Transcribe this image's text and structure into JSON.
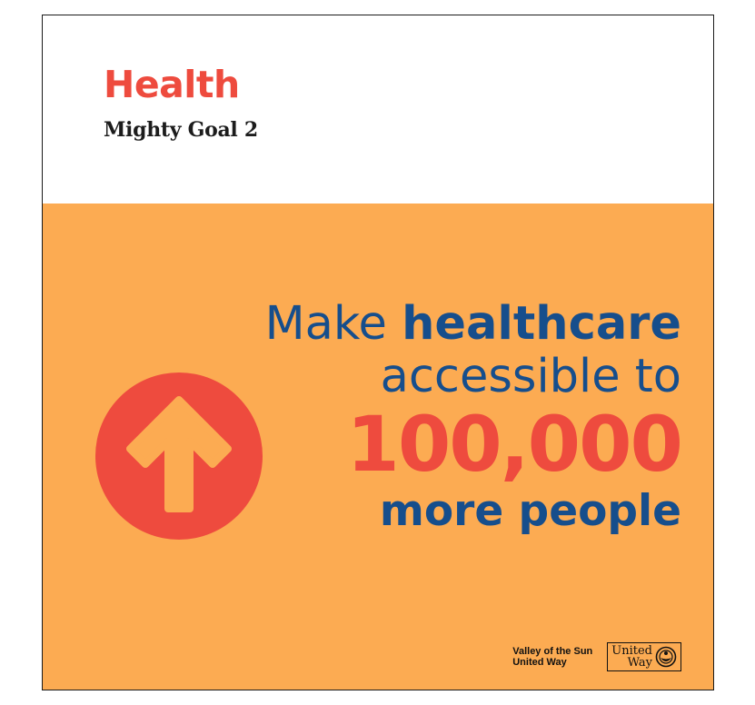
{
  "colors": {
    "accent_red": "#ee4b3e",
    "accent_blue": "#164e8c",
    "panel": "#fcab52"
  },
  "header": {
    "title": "Health",
    "subtitle": "Mighty Goal 2"
  },
  "message": {
    "line1_light": "Make ",
    "line1_bold": "healthcare",
    "line2": "accessible to",
    "number": "100,000",
    "line4": "more people"
  },
  "badge_icon": "up-arrow-icon",
  "brand": {
    "org_line1": "Valley of the Sun",
    "org_line2": "United Way",
    "logo_line1": "United",
    "logo_line2": "Way",
    "logo_icon": "united-way-hand-icon"
  }
}
